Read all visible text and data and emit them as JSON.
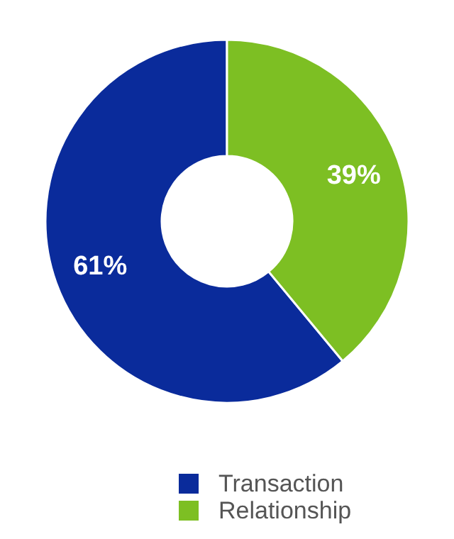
{
  "chart_data": {
    "type": "donut",
    "categories": [
      "Transaction",
      "Relationship"
    ],
    "values": [
      61,
      39
    ],
    "colors": [
      "#0a2b9b",
      "#7dbf23"
    ],
    "value_labels": [
      "61%",
      "39%"
    ],
    "legend": "bottom"
  }
}
